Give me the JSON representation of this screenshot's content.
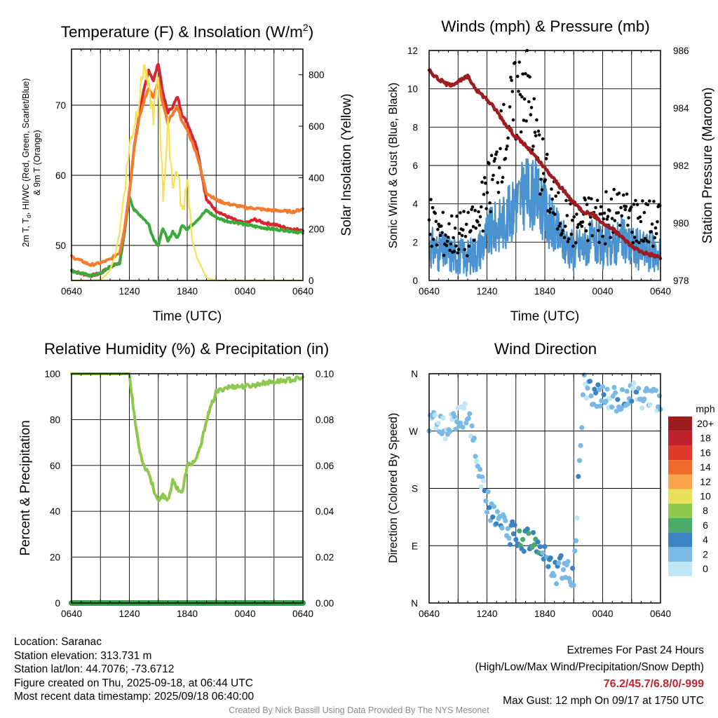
{
  "chart_data": [
    {
      "type": "line",
      "title_main": "Temperature (F) & Insolation (W/m",
      "title_sup": "2",
      "title_end": ")",
      "xlabel": "Time (UTC)",
      "ylabel_left": [
        "2m T, T",
        "d",
        ", HI/WC (Red, Green, Scarlet/Blue)",
        "& 9m T (Orange)"
      ],
      "ylabel_right": "Solar Insolation (Yellow)",
      "x_ticks": [
        "0640",
        "1240",
        "1840",
        "0040",
        "0640"
      ],
      "ylim_left": [
        45,
        78
      ],
      "y_ticks_left": [
        50,
        60,
        70
      ],
      "ylim_right": [
        0,
        900
      ],
      "y_ticks_right": [
        0,
        200,
        400,
        600,
        800
      ],
      "colors": {
        "temp": "#d7262e",
        "dewpoint": "#3aaa3a",
        "temp9m": "#f27b2e",
        "insolation": "#f7e053"
      },
      "series": [
        {
          "name": "2m T",
          "color": "#d7262e",
          "axis": "left",
          "x": [
            0,
            1,
            2,
            3,
            4,
            5,
            5.5,
            6,
            6.5,
            7,
            7.5,
            8,
            8.5,
            9,
            9.5,
            10,
            10.5,
            11,
            11.5,
            12,
            13,
            14,
            15,
            16,
            17,
            18,
            19,
            20,
            21,
            22,
            23,
            24
          ],
          "y": [
            46.4,
            46.0,
            45.7,
            46.0,
            47.0,
            47.5,
            52.0,
            57.5,
            64.0,
            68.5,
            72.0,
            75.0,
            73.5,
            76.0,
            71.5,
            69.0,
            69.8,
            71.2,
            68.5,
            67.5,
            64.0,
            56.5,
            55.0,
            54.2,
            53.6,
            53.1,
            53.7,
            53.2,
            53.0,
            52.6,
            52.3,
            52.2
          ]
        },
        {
          "name": "2m Td",
          "color": "#3aaa3a",
          "axis": "left",
          "x": [
            0,
            1,
            2,
            3,
            4,
            5,
            5.5,
            6,
            6.5,
            7,
            7.5,
            8,
            8.5,
            9,
            9.5,
            10,
            10.5,
            11,
            11.5,
            12,
            13,
            14,
            15,
            16,
            17,
            18,
            19,
            20,
            21,
            22,
            23,
            24
          ],
          "y": [
            46.4,
            46.0,
            45.7,
            46.0,
            47.0,
            47.5,
            52.0,
            57.0,
            55.0,
            54.5,
            53.8,
            53.0,
            51.0,
            50.0,
            52.5,
            50.5,
            52.0,
            51.0,
            53.0,
            52.3,
            53.6,
            55.0,
            54.0,
            53.5,
            53.3,
            53.0,
            52.7,
            52.5,
            52.3,
            52.2,
            52.0,
            51.8
          ]
        },
        {
          "name": "9m T",
          "color": "#f27b2e",
          "axis": "left",
          "x": [
            0,
            1,
            2,
            3,
            4,
            5,
            5.5,
            6,
            6.5,
            7,
            7.5,
            8,
            8.5,
            9,
            9.5,
            10,
            10.5,
            11,
            11.5,
            12,
            13,
            14,
            15,
            16,
            17,
            18,
            19,
            20,
            21,
            22,
            23,
            24
          ],
          "y": [
            48.4,
            47.8,
            47.2,
            47.5,
            48.0,
            49.0,
            52.5,
            57.5,
            64.0,
            68.0,
            70.5,
            72.5,
            71.0,
            73.5,
            70.0,
            67.5,
            68.8,
            69.8,
            67.5,
            66.5,
            63.0,
            57.5,
            56.5,
            56.0,
            55.7,
            55.4,
            55.3,
            55.1,
            55.0,
            54.9,
            54.8,
            55.2
          ]
        },
        {
          "name": "Insolation",
          "color": "#f7e053",
          "axis": "right",
          "x": [
            0,
            1,
            2,
            3,
            3.5,
            4,
            4.5,
            5,
            5.5,
            6,
            6.5,
            7,
            7.5,
            8,
            8.5,
            9,
            9.5,
            10,
            10.5,
            11,
            11.5,
            12,
            12.5,
            13,
            14,
            15,
            16,
            17,
            18,
            19,
            20,
            21,
            22,
            23,
            24
          ],
          "y": [
            0,
            0,
            0,
            3,
            18,
            40,
            95,
            190,
            360,
            520,
            610,
            700,
            840,
            740,
            640,
            790,
            330,
            600,
            380,
            430,
            250,
            410,
            160,
            90,
            10,
            0,
            0,
            0,
            0,
            0,
            0,
            0,
            0,
            0,
            0
          ]
        }
      ]
    },
    {
      "type": "scatter",
      "title": "Winds (mph) & Pressure (mb)",
      "xlabel": "Time (UTC)",
      "ylabel_left": "Sonic Wind & Gust (Blue, Black)",
      "ylabel_right": "Station Pressure (Maroon)",
      "x_ticks": [
        "0640",
        "1240",
        "1840",
        "0040",
        "0640"
      ],
      "ylim_left": [
        0,
        12
      ],
      "y_ticks_left": [
        0,
        2,
        4,
        6,
        8,
        10,
        12
      ],
      "ylim_right": [
        978,
        986
      ],
      "y_ticks_right": [
        978,
        980,
        982,
        984,
        986
      ],
      "colors": {
        "wind": "#4a93d0",
        "gust": "#000000",
        "pressure": "#9e1b1f"
      },
      "series": [
        {
          "name": "Sonic Wind",
          "color": "#4a93d0",
          "axis": "left",
          "x": [
            0,
            1,
            2,
            3,
            4,
            5,
            6,
            7,
            8,
            9,
            10,
            11,
            12,
            13,
            14,
            15,
            16,
            17,
            18,
            19,
            20,
            21,
            22,
            23,
            24
          ],
          "y": [
            1.8,
            1.5,
            1.4,
            1.3,
            1.2,
            1.5,
            2.3,
            2.8,
            3.2,
            4.0,
            4.6,
            4.5,
            3.6,
            2.6,
            2.0,
            1.6,
            1.8,
            2.0,
            1.7,
            1.9,
            2.1,
            1.8,
            1.6,
            1.5,
            1.4
          ]
        },
        {
          "name": "Gust",
          "color": "#000000",
          "axis": "left",
          "x": [
            0,
            1,
            2,
            3,
            4,
            5,
            6,
            7,
            8,
            9,
            10,
            11,
            12,
            13,
            14,
            15,
            16,
            17,
            18,
            19,
            20,
            21,
            22,
            23,
            24
          ],
          "y": [
            3.0,
            2.6,
            2.4,
            2.6,
            2.5,
            3.0,
            4.5,
            6.0,
            8.0,
            9.5,
            11.0,
            7.5,
            5.5,
            4.0,
            3.3,
            3.0,
            3.2,
            3.4,
            3.2,
            3.4,
            3.6,
            3.3,
            3.2,
            3.0,
            3.2
          ]
        },
        {
          "name": "Station Pressure",
          "color": "#9e1b1f",
          "axis": "right",
          "x": [
            0,
            1,
            2,
            3,
            4,
            5,
            6,
            7,
            8,
            9,
            10,
            11,
            12,
            13,
            14,
            15,
            16,
            17,
            18,
            19,
            20,
            21,
            22,
            23,
            24
          ],
          "y": [
            985.3,
            985.0,
            984.8,
            984.9,
            985.1,
            984.6,
            984.3,
            983.9,
            983.4,
            983.0,
            982.7,
            982.3,
            981.9,
            981.5,
            981.1,
            980.7,
            980.4,
            980.3,
            980.0,
            979.8,
            979.5,
            979.2,
            979.0,
            978.9,
            978.8
          ]
        }
      ]
    },
    {
      "type": "line",
      "title": "Relative Humidity (%) & Precipitation (in)",
      "ylabel_left": "Percent & Precipitation",
      "x_ticks": [
        "0640",
        "1240",
        "1840",
        "0040",
        "0640"
      ],
      "ylim_left": [
        0,
        100
      ],
      "y_ticks_left": [
        0,
        20,
        40,
        60,
        80,
        100
      ],
      "ylim_right": [
        0,
        0.1
      ],
      "y_ticks_right": [
        "0.00",
        "0.02",
        "0.04",
        "0.06",
        "0.08",
        "0.10"
      ],
      "colors": {
        "rh": "#8cc84b",
        "precip": "#2f9e44"
      },
      "series": [
        {
          "name": "Relative Humidity",
          "color": "#8cc84b",
          "axis": "left",
          "x": [
            0,
            1,
            2,
            3,
            4,
            5,
            6,
            6.5,
            7,
            7.5,
            8,
            8.5,
            9,
            9.5,
            10,
            10.5,
            11,
            11.5,
            12,
            12.5,
            13,
            13.5,
            14,
            15,
            16,
            17,
            18,
            19,
            20,
            21,
            22,
            23,
            24
          ],
          "y": [
            100,
            100,
            100,
            100,
            100,
            100,
            100,
            82,
            68,
            60,
            57,
            50,
            44,
            47,
            45,
            53,
            50,
            48,
            60,
            61,
            63,
            70,
            80,
            92,
            94,
            94.5,
            94.5,
            95,
            96,
            96.5,
            97,
            97.5,
            98
          ]
        },
        {
          "name": "Precipitation",
          "color": "#2f9e44",
          "axis": "right",
          "x": [
            0,
            24
          ],
          "y": [
            0,
            0
          ]
        }
      ]
    },
    {
      "type": "scatter",
      "title": "Wind Direction",
      "ylabel_left": "Direction (Colored By Speed)",
      "x_ticks": [
        "0640",
        "1240",
        "1840",
        "0040",
        "0640"
      ],
      "y_tick_labels": [
        "N",
        "E",
        "S",
        "W",
        "N"
      ],
      "ylim_left": [
        0,
        360
      ],
      "legend_title": "mph",
      "legend_labels": [
        "20+",
        "18",
        "16",
        "14",
        "12",
        "10",
        "8",
        "6",
        "4",
        "2",
        "0"
      ],
      "legend_colors": [
        "#9e1b1f",
        "#c0202a",
        "#df3a2c",
        "#f06a2c",
        "#f9a64a",
        "#e8df5a",
        "#8cc84b",
        "#4aaa6a",
        "#3a82c0",
        "#7ab8e6",
        "#bfe6f7"
      ],
      "series": [
        {
          "name": "Direction",
          "x": [
            0,
            1,
            2,
            3,
            4,
            5,
            6,
            7,
            8,
            9,
            10,
            11,
            12,
            13,
            14,
            15,
            16,
            17,
            18,
            19,
            20,
            21,
            22,
            23,
            24
          ],
          "y": [
            287,
            280,
            275,
            290,
            295,
            230,
            160,
            130,
            115,
            105,
            100,
            95,
            80,
            45,
            60,
            40,
            340,
            330,
            325,
            320,
            315,
            330,
            325,
            320,
            320
          ]
        }
      ]
    }
  ],
  "footer": {
    "location": "Location: Saranac",
    "elevation": "Station elevation: 313.731 m",
    "latlon": "Station lat/lon: 44.7076; -73.6712",
    "created": "Figure created on Thu, 2025-09-18, at 06:44 UTC",
    "recent": "Most recent data timestamp: 2025/09/18 06:40:00",
    "extremes_title": "Extremes For Past 24 Hours",
    "extremes_desc": "(High/Low/Max Wind/Precipitation/Snow Depth)",
    "extremes_values": "76.2/45.7/6.8/0/-999",
    "max_gust": "Max Gust: 12 mph On 09/17 at 1750 UTC",
    "credit": "Created By Nick Bassill Using Data Provided By The NYS Mesonet"
  }
}
